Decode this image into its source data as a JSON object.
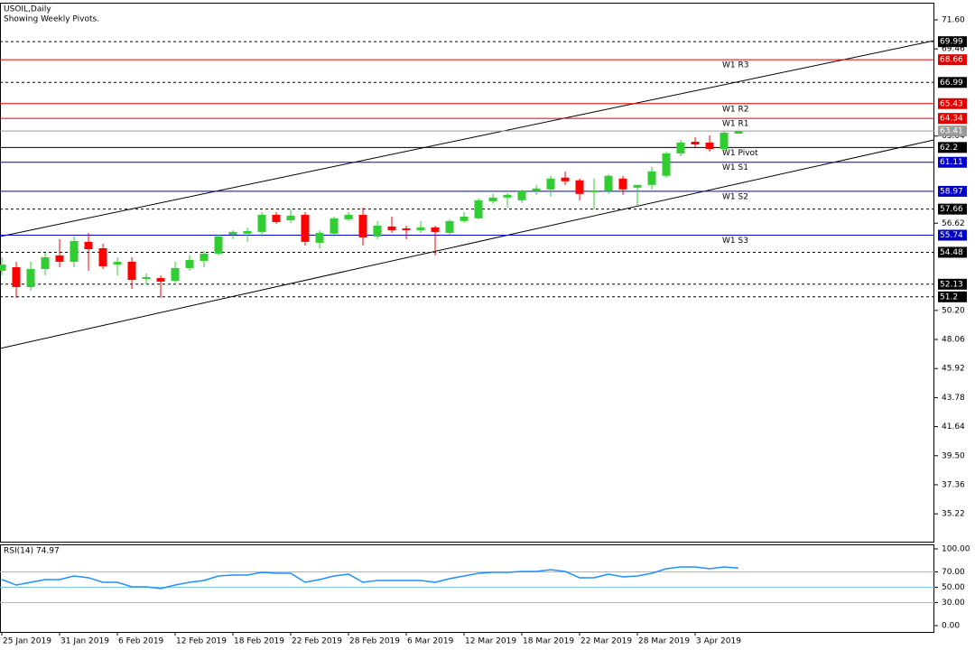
{
  "chart_data": [
    {
      "type": "candlestick",
      "title": "USOIL,Daily",
      "subtitle": "Showing Weekly Pivots.",
      "up_color": "#32cd32",
      "down_color": "#ff0000",
      "open": [
        53.12,
        53.38,
        51.92,
        53.25,
        54.25,
        53.78,
        55.25,
        54.78,
        53.58,
        53.78,
        52.52,
        52.58,
        52.38,
        53.32,
        53.85,
        54.38,
        55.78,
        55.85,
        55.98,
        57.24,
        56.84,
        57.24,
        55.18,
        55.85,
        56.91,
        57.24,
        55.64,
        56.38,
        56.24,
        56.11,
        56.31,
        55.91,
        56.78,
        56.98,
        58.24,
        58.51,
        58.31,
        58.98,
        59.11,
        59.98,
        59.78,
        58.91,
        58.98,
        59.91,
        59.24,
        59.44,
        60.11,
        61.76,
        62.62,
        62.56,
        62.09,
        63.22
      ],
      "high": [
        54.11,
        53.78,
        53.78,
        54.45,
        55.45,
        55.64,
        55.91,
        55.11,
        54.11,
        54.11,
        52.92,
        52.78,
        53.78,
        54.25,
        54.58,
        55.78,
        56.11,
        56.31,
        57.44,
        57.44,
        57.64,
        57.44,
        56.11,
        57.11,
        57.44,
        57.78,
        56.78,
        57.11,
        56.44,
        56.78,
        56.44,
        56.91,
        57.44,
        58.44,
        58.78,
        58.84,
        59.11,
        59.44,
        60.11,
        60.44,
        59.91,
        59.91,
        60.24,
        60.11,
        59.44,
        60.78,
        61.89,
        62.76,
        62.96,
        63.09,
        63.42,
        63.42
      ],
      "low": [
        52.78,
        51.12,
        51.65,
        52.78,
        53.38,
        53.38,
        53.12,
        53.25,
        52.78,
        51.78,
        52.12,
        51.12,
        52.25,
        53.12,
        53.38,
        54.25,
        55.45,
        55.25,
        55.64,
        56.58,
        56.64,
        54.98,
        54.78,
        55.64,
        56.78,
        54.98,
        55.45,
        55.91,
        55.45,
        55.91,
        54.25,
        55.78,
        56.64,
        56.91,
        58.04,
        57.78,
        58.11,
        58.71,
        58.58,
        59.44,
        58.31,
        57.64,
        58.78,
        58.71,
        57.91,
        59.11,
        59.96,
        61.56,
        62.22,
        61.89,
        61.96,
        63.29
      ],
      "close": [
        53.58,
        51.92,
        53.25,
        54.11,
        53.78,
        55.31,
        54.71,
        53.45,
        53.78,
        52.45,
        52.65,
        52.32,
        53.32,
        53.92,
        54.38,
        55.64,
        55.98,
        56.05,
        57.24,
        56.71,
        57.18,
        55.25,
        55.91,
        56.98,
        57.24,
        55.58,
        56.44,
        56.11,
        56.11,
        56.31,
        55.98,
        56.78,
        57.11,
        58.31,
        58.51,
        58.71,
        58.98,
        59.18,
        59.91,
        59.71,
        58.78,
        58.98,
        60.11,
        59.11,
        59.44,
        60.44,
        61.76,
        62.56,
        62.42,
        62.09,
        63.29,
        63.41
      ],
      "ylim": [
        33.17,
        72.86
      ],
      "yticks": [
        {
          "value": 71.6,
          "label": "71.60"
        },
        69.46,
        63.04,
        56.62,
        {
          "value": 50.2,
          "label": "50.20"
        },
        48.06,
        45.92,
        43.78,
        41.64,
        {
          "value": 39.5,
          "label": "39.50"
        },
        37.36,
        35.22
      ],
      "levels": [
        {
          "value": 69.99,
          "color": "#000000",
          "style": "dashed"
        },
        {
          "value": 68.66,
          "color": "#e00000",
          "style": "solid",
          "label": "W1 R3"
        },
        {
          "value": 66.99,
          "color": "#000000",
          "style": "dashed"
        },
        {
          "value": 65.43,
          "color": "#e00000",
          "style": "solid",
          "label": "W1 R2"
        },
        {
          "value": 64.34,
          "color": "#e00000",
          "style": "solid",
          "label": "W1 R1"
        },
        {
          "value": 62.2,
          "color": "#000000",
          "style": "solid",
          "label": "W1 Pivot"
        },
        {
          "value": 61.11,
          "color": "#0000c8",
          "style": "solid",
          "label": "W1 S1"
        },
        {
          "value": 58.97,
          "color": "#0000c8",
          "style": "solid",
          "label": "W1 S2"
        },
        {
          "value": 57.66,
          "color": "#000000",
          "style": "dashed"
        },
        {
          "value": 55.74,
          "color": "#0000c8",
          "style": "solid",
          "label": "W1 S3"
        },
        {
          "value": 54.48,
          "color": "#000000",
          "style": "dashed"
        },
        {
          "value": 52.13,
          "color": "#000000",
          "style": "dashed"
        },
        {
          "value": 51.2,
          "color": "#000000",
          "style": "dashed"
        }
      ],
      "last_price": 63.41,
      "last_price_color": "#9a9a9a",
      "trendlines": [
        {
          "color": "#000000",
          "values": [
            55.64,
            70.07
          ]
        },
        {
          "color": "#000000",
          "values": [
            47.4,
            62.76
          ]
        }
      ]
    },
    {
      "type": "line",
      "title": "RSI(14) 74.97",
      "categories": [
        "25 Jan 2019",
        null,
        null,
        null,
        "31 Jan 2019",
        null,
        null,
        null,
        "6 Feb 2019",
        null,
        null,
        null,
        "12 Feb 2019",
        null,
        null,
        null,
        "18 Feb 2019",
        null,
        null,
        null,
        "22 Feb 2019",
        null,
        null,
        null,
        "28 Feb 2019",
        null,
        null,
        null,
        "6 Mar 2019",
        null,
        null,
        null,
        "12 Mar 2019",
        null,
        null,
        null,
        "18 Mar 2019",
        null,
        null,
        null,
        "22 Mar 2019",
        null,
        null,
        null,
        "28 Mar 2019",
        null,
        null,
        null,
        "3 Apr 2019",
        null,
        null,
        null
      ],
      "color": "#1e90ff",
      "values": [
        60.0,
        52.9,
        56.5,
        60.0,
        60.0,
        64.7,
        62.4,
        56.5,
        56.5,
        50.6,
        50.6,
        48.2,
        52.9,
        56.5,
        58.8,
        64.7,
        65.9,
        65.9,
        69.4,
        68.2,
        68.2,
        56.5,
        60.0,
        64.7,
        67.1,
        56.5,
        58.8,
        58.8,
        58.8,
        58.8,
        56.5,
        61.2,
        64.7,
        68.2,
        69.4,
        69.4,
        70.6,
        70.6,
        72.9,
        70.6,
        62.4,
        62.4,
        67.1,
        63.5,
        64.7,
        68.2,
        74.1,
        76.5,
        76.5,
        74.1,
        76.5,
        74.97
      ],
      "ylim": [
        -8.24,
        105.88
      ],
      "yticks": [
        {
          "value": 100,
          "label": "100.00"
        },
        {
          "value": 70,
          "label": "70.00"
        },
        {
          "value": 50,
          "label": "50.00"
        },
        {
          "value": 30,
          "label": "30.00"
        },
        {
          "value": 0,
          "label": "0.00"
        }
      ],
      "levels": [
        70,
        50,
        30
      ],
      "level_color": "#7ec8e3"
    }
  ]
}
